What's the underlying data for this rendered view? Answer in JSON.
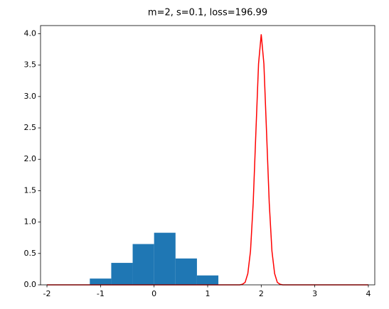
{
  "chart_data": {
    "type": "combo",
    "title": "m=2, s=0.1, loss=196.99",
    "xlim": [
      -2.12,
      4.12
    ],
    "ylim": [
      0,
      4.13
    ],
    "xticks": [
      -2,
      -1,
      0,
      1,
      2,
      3,
      4
    ],
    "yticks": [
      {
        "value": 0,
        "label": "0.0"
      },
      {
        "value": 0.5,
        "label": "0.5"
      },
      {
        "value": 1,
        "label": "1.0"
      },
      {
        "value": 1.5,
        "label": "1.5"
      },
      {
        "value": 2,
        "label": "2.0"
      },
      {
        "value": 2.5,
        "label": "2.5"
      },
      {
        "value": 3,
        "label": "3.0"
      },
      {
        "value": 3.5,
        "label": "3.5"
      },
      {
        "value": 4,
        "label": "4.0"
      }
    ],
    "layers": [
      {
        "type": "histogram",
        "color": "#1f77b4",
        "bins": [
          -1.2,
          -0.8,
          -0.4,
          0,
          0.4,
          0.8,
          1.2
        ],
        "values": [
          0.1,
          0.35,
          0.65,
          0.83,
          0.42,
          0.15
        ]
      },
      {
        "type": "line",
        "color": "#ff0000",
        "x": [
          -2,
          1.6,
          1.65,
          1.7,
          1.75,
          1.8,
          1.85,
          1.9,
          1.95,
          2,
          2.05,
          2.1,
          2.15,
          2.2,
          2.25,
          2.3,
          2.35,
          2.4,
          4
        ],
        "values": [
          0,
          0,
          0.01,
          0.04,
          0.18,
          0.54,
          1.3,
          2.42,
          3.52,
          3.99,
          3.52,
          2.42,
          1.3,
          0.54,
          0.18,
          0.04,
          0.01,
          0,
          0
        ]
      }
    ]
  }
}
